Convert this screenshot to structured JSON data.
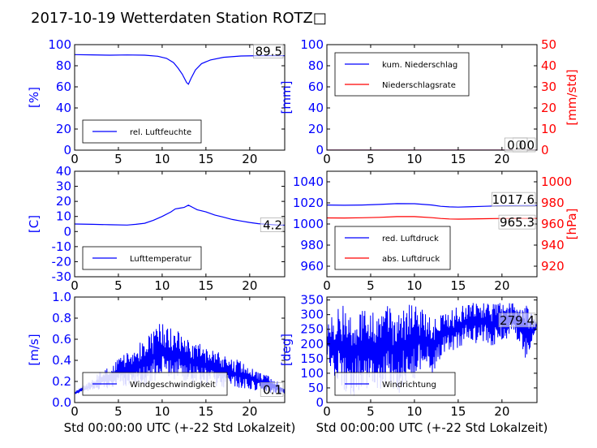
{
  "title": "2017-10-19 Wetterdaten Station ROTZ□",
  "colors": {
    "blue": "#0000ff",
    "red": "#ff0000",
    "black": "#000000"
  },
  "chart_data": [
    {
      "type": "line",
      "panel": "humidity",
      "ylabel": "[%]",
      "xlim": [
        0,
        24
      ],
      "ylim": [
        0,
        100
      ],
      "xticks": [
        0,
        5,
        10,
        15,
        20
      ],
      "yticks": [
        0,
        20,
        40,
        60,
        80,
        100
      ],
      "legend": "bottom-left",
      "series": [
        {
          "name": "rel. Luftfeuchte",
          "color": "#0000ff",
          "x": [
            0,
            2,
            4,
            6,
            8,
            9.5,
            10.5,
            11.3,
            11.8,
            12.3,
            12.8,
            13.0,
            13.3,
            13.8,
            14.5,
            15.5,
            17,
            19,
            21,
            24
          ],
          "y": [
            90.5,
            90.3,
            90.0,
            90.2,
            90.0,
            89.0,
            87.0,
            83.0,
            78.0,
            72.0,
            64.0,
            62.5,
            68.0,
            76.0,
            82.0,
            85.5,
            88.0,
            89.2,
            89.5,
            89.5
          ]
        }
      ],
      "value_labels": [
        {
          "text": "89.5",
          "series": 0
        }
      ]
    },
    {
      "type": "line",
      "panel": "precipitation",
      "ylabel": "[mm]",
      "ylabel2": "[mm/std]",
      "xlim": [
        0,
        24
      ],
      "ylim": [
        0,
        100
      ],
      "ylim2": [
        0,
        50
      ],
      "xticks": [
        0,
        5,
        10,
        15,
        20
      ],
      "yticks": [
        0,
        20,
        40,
        60,
        80,
        100
      ],
      "yticks2": [
        0,
        10,
        20,
        30,
        40,
        50
      ],
      "legend": "top-left",
      "series": [
        {
          "name": "kum. Niederschlag",
          "color": "#0000ff",
          "axis": "left",
          "x": [
            0,
            24
          ],
          "y": [
            0,
            0
          ]
        },
        {
          "name": "Niederschlagsrate",
          "color": "#ff0000",
          "axis": "right",
          "x": [
            0,
            24
          ],
          "y": [
            0,
            0
          ]
        }
      ],
      "value_labels": [
        {
          "text": "0.0",
          "series": 0
        },
        {
          "text": "0.0",
          "series": 1
        }
      ]
    },
    {
      "type": "line",
      "panel": "temperature",
      "ylabel": "[C]",
      "xlim": [
        0,
        24
      ],
      "ylim": [
        -30,
        40
      ],
      "xticks": [
        0,
        5,
        10,
        15,
        20
      ],
      "yticks": [
        -30,
        -20,
        -10,
        0,
        10,
        20,
        30,
        40
      ],
      "legend": "bottom-left",
      "series": [
        {
          "name": "Lufttemperatur",
          "color": "#0000ff",
          "x": [
            0,
            2,
            4,
            6,
            7,
            8,
            9,
            10,
            11,
            11.5,
            12,
            12.5,
            13,
            13.5,
            14,
            15,
            16,
            17,
            18,
            19,
            20,
            21,
            22,
            23,
            24
          ],
          "y": [
            5.0,
            4.8,
            4.5,
            4.3,
            4.8,
            5.5,
            7.5,
            10.0,
            13.0,
            15.0,
            15.5,
            16.0,
            17.5,
            16.0,
            14.5,
            13.0,
            11.0,
            9.5,
            8.0,
            7.0,
            6.0,
            5.2,
            4.8,
            4.4,
            4.2
          ]
        }
      ],
      "value_labels": [
        {
          "text": "4.2",
          "series": 0
        }
      ]
    },
    {
      "type": "line",
      "panel": "pressure",
      "ylabel2": "[hPa]",
      "xlim": [
        0,
        24
      ],
      "ylim": [
        950,
        1050
      ],
      "ylim2": [
        910,
        1010
      ],
      "xticks": [
        0,
        5,
        10,
        15,
        20
      ],
      "yticks": [
        960,
        980,
        1000,
        1020,
        1040
      ],
      "yticks2": [
        920,
        940,
        960,
        980,
        1000
      ],
      "legend": "bottom-left",
      "series": [
        {
          "name": "red. Luftdruck",
          "color": "#0000ff",
          "axis": "left",
          "x": [
            0,
            2,
            4,
            6,
            8,
            10,
            12,
            13,
            14,
            15,
            16,
            18,
            20,
            22,
            24
          ],
          "y": [
            1018.0,
            1017.8,
            1018.0,
            1018.5,
            1019.3,
            1019.2,
            1018.0,
            1016.8,
            1016.2,
            1016.0,
            1016.2,
            1016.8,
            1017.3,
            1017.5,
            1017.6
          ]
        },
        {
          "name": "abs. Luftdruck",
          "color": "#ff0000",
          "axis": "right",
          "x": [
            0,
            2,
            4,
            6,
            8,
            10,
            12,
            13,
            14,
            15,
            16,
            18,
            20,
            22,
            24
          ],
          "y": [
            965.8,
            965.7,
            965.9,
            966.3,
            967.0,
            967.0,
            966.0,
            965.2,
            964.8,
            964.6,
            964.7,
            965.0,
            965.2,
            965.3,
            965.3
          ]
        }
      ],
      "value_labels": [
        {
          "text": "1017.6",
          "series": 0
        },
        {
          "text": "965.3",
          "series": 1
        }
      ]
    },
    {
      "type": "line",
      "panel": "wind-speed",
      "ylabel": "[m/s]",
      "xlabel": "Std 00:00:00 UTC (+-22 Std Lokalzeit)",
      "xlim": [
        0,
        24
      ],
      "ylim": [
        0,
        1.0
      ],
      "xticks": [
        0,
        5,
        10,
        15,
        20
      ],
      "yticks": [
        0,
        0.2,
        0.4,
        0.6,
        0.8,
        1.0
      ],
      "legend": "bottom-left",
      "series": [
        {
          "name": "Windgeschwindigkeit",
          "color": "#0000ff",
          "x": [
            0,
            1,
            2,
            3,
            4,
            5,
            6,
            7,
            8,
            9,
            10,
            11,
            12,
            13,
            14,
            15,
            16,
            17,
            18,
            19,
            20,
            21,
            22,
            23,
            24
          ],
          "y": [
            0.1,
            0.16,
            0.22,
            0.3,
            0.35,
            0.42,
            0.48,
            0.55,
            0.6,
            0.68,
            0.78,
            0.72,
            0.7,
            0.62,
            0.58,
            0.55,
            0.5,
            0.45,
            0.42,
            0.4,
            0.35,
            0.3,
            0.26,
            0.22,
            0.12
          ],
          "y_min": [
            0.08,
            0.1,
            0.12,
            0.12,
            0.14,
            0.15,
            0.15,
            0.16,
            0.16,
            0.18,
            0.2,
            0.2,
            0.2,
            0.18,
            0.18,
            0.16,
            0.15,
            0.14,
            0.13,
            0.12,
            0.12,
            0.1,
            0.1,
            0.08,
            0.08
          ]
        }
      ],
      "value_labels": [
        {
          "text": "0.1",
          "series": 0
        }
      ]
    },
    {
      "type": "line",
      "panel": "wind-direction",
      "ylabel": "[deg]",
      "xlabel": "Std 00:00:00 UTC (+-22 Std Lokalzeit)",
      "xlim": [
        0,
        24
      ],
      "ylim": [
        0,
        360
      ],
      "xticks": [
        0,
        5,
        10,
        15,
        20
      ],
      "yticks": [
        0,
        50,
        100,
        150,
        200,
        250,
        300,
        350
      ],
      "legend": "bottom-left",
      "series": [
        {
          "name": "Windrichtung",
          "color": "#0000ff",
          "x": [
            0,
            1,
            2,
            3,
            4,
            5,
            6,
            7,
            8,
            9,
            10,
            11,
            12,
            13,
            14,
            15,
            16,
            17,
            18,
            19,
            20,
            21,
            22,
            23,
            24
          ],
          "y": [
            270,
            320,
            340,
            335,
            330,
            325,
            320,
            330,
            320,
            340,
            330,
            320,
            280,
            300,
            310,
            330,
            340,
            340,
            345,
            340,
            345,
            340,
            335,
            330,
            280
          ],
          "y_min": [
            160,
            70,
            30,
            20,
            50,
            20,
            40,
            60,
            20,
            60,
            80,
            120,
            100,
            150,
            180,
            170,
            210,
            200,
            210,
            190,
            210,
            220,
            200,
            120,
            250
          ]
        }
      ],
      "value_labels": [
        {
          "text": "279.4",
          "series": 0
        }
      ]
    }
  ]
}
